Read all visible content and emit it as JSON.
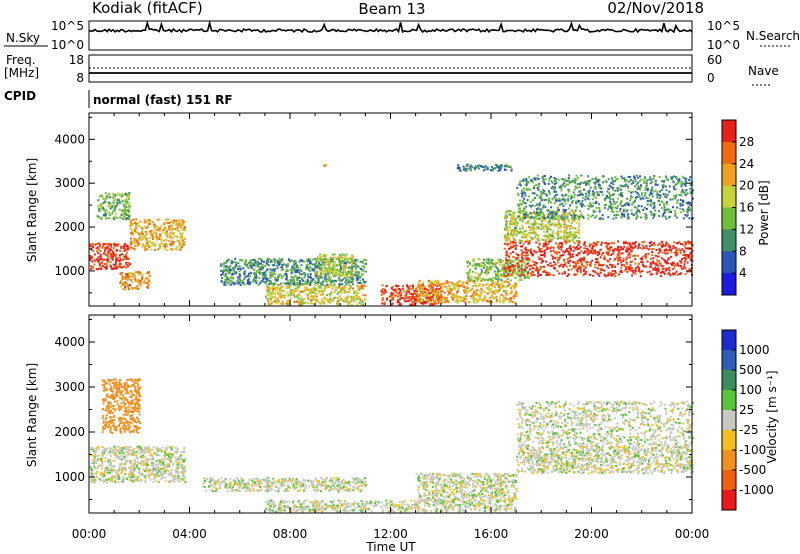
{
  "header": {
    "station": "Kodiak (fitACF)",
    "beam": "Beam 13",
    "date": "02/Nov/2018"
  },
  "nsky_panel": {
    "label": "N.Sky",
    "ytick_top": "10^5",
    "ytick_bottom": "10^0",
    "right_label": "N.Search",
    "right_ytick_top": "10^5",
    "right_ytick_bottom": "10^0"
  },
  "freq_panel": {
    "label_line1": "Freq.",
    "label_line2": "[MHz]",
    "ytick_top": "18",
    "ytick_bottom": "8",
    "right_label": "Nave",
    "right_ytick_top": "60",
    "right_ytick_bottom": "0"
  },
  "cpid": {
    "label": "CPID",
    "value": "normal (fast) 151 RF"
  },
  "chart_data": [
    {
      "type": "heatmap",
      "name": "power",
      "ylabel": "Slant Range [km]",
      "ylim": [
        200,
        4600
      ],
      "yticks": [
        1000,
        2000,
        3000,
        4000
      ],
      "xlim": [
        0,
        24
      ],
      "xticks": [
        0,
        4,
        8,
        12,
        16,
        20,
        24
      ],
      "xtick_labels": [
        "00:00",
        "04:00",
        "08:00",
        "12:00",
        "16:00",
        "20:00",
        "00:00"
      ],
      "colorbar": {
        "label": "Power [dB]",
        "ticks": [
          "4",
          "8",
          "12",
          "16",
          "20",
          "24",
          "28"
        ],
        "range": [
          0,
          30
        ],
        "colors": [
          "#1c1ce0",
          "#2b56b8",
          "#3f8f6a",
          "#6fbf3a",
          "#c8d23a",
          "#f0a020",
          "#f06a10",
          "#e8201a"
        ]
      },
      "echo_regions": [
        {
          "x": [
            0.0,
            1.6
          ],
          "range": [
            1050,
            1650
          ],
          "power": 28
        },
        {
          "x": [
            1.6,
            3.8
          ],
          "range": [
            1500,
            2200
          ],
          "power": 20
        },
        {
          "x": [
            0.3,
            1.6
          ],
          "range": [
            2200,
            2800
          ],
          "power": 12
        },
        {
          "x": [
            1.2,
            2.4
          ],
          "range": [
            600,
            1000
          ],
          "power": 22
        },
        {
          "x": [
            5.2,
            11.0
          ],
          "range": [
            700,
            1300
          ],
          "power": 10
        },
        {
          "x": [
            9.0,
            10.5
          ],
          "range": [
            900,
            1400
          ],
          "power": 16
        },
        {
          "x": [
            7.0,
            11.0
          ],
          "range": [
            250,
            700
          ],
          "power": 18
        },
        {
          "x": [
            11.6,
            14.0
          ],
          "range": [
            250,
            700
          ],
          "power": 28
        },
        {
          "x": [
            13.0,
            17.0
          ],
          "range": [
            300,
            800
          ],
          "power": 20
        },
        {
          "x": [
            15.0,
            17.5
          ],
          "range": [
            800,
            1300
          ],
          "power": 14
        },
        {
          "x": [
            16.5,
            24.0
          ],
          "range": [
            900,
            1700
          ],
          "power": 28
        },
        {
          "x": [
            16.5,
            19.5
          ],
          "range": [
            1700,
            2400
          ],
          "power": 16
        },
        {
          "x": [
            17.0,
            24.0
          ],
          "range": [
            2200,
            3200
          ],
          "power": 10
        },
        {
          "x": [
            9.3,
            9.4
          ],
          "range": [
            3300,
            3450
          ],
          "power": 24
        },
        {
          "x": [
            14.6,
            16.8
          ],
          "range": [
            3300,
            3450
          ],
          "power": 8
        }
      ]
    },
    {
      "type": "heatmap",
      "name": "velocity",
      "ylabel": "Slant Range [km]",
      "xlabel": "Time UT",
      "ylim": [
        200,
        4600
      ],
      "yticks": [
        1000,
        2000,
        3000,
        4000
      ],
      "xlim": [
        0,
        24
      ],
      "xticks": [
        0,
        4,
        8,
        12,
        16,
        20,
        24
      ],
      "xtick_labels": [
        "00:00",
        "04:00",
        "08:00",
        "12:00",
        "16:00",
        "20:00",
        "00:00"
      ],
      "colorbar": {
        "label": "Velocity [m s⁻¹]",
        "ticks": [
          "1000",
          "500",
          "100",
          "25",
          "-25",
          "-100",
          "-500",
          "-1000"
        ],
        "colors": [
          "#1c2bd0",
          "#2b5fb8",
          "#3d8c5e",
          "#58c43a",
          "#c8c8c0",
          "#f0c020",
          "#f09020",
          "#f06010",
          "#e81a1a"
        ]
      },
      "echo_regions": [
        {
          "x": [
            0.0,
            3.8
          ],
          "range": [
            1400,
            1700
          ],
          "velocity": 0
        },
        {
          "x": [
            0.0,
            3.8
          ],
          "range": [
            900,
            1400
          ],
          "velocity": 0
        },
        {
          "x": [
            0.5,
            2.0
          ],
          "range": [
            2000,
            3200
          ],
          "velocity": -100
        },
        {
          "x": [
            4.5,
            11.0
          ],
          "range": [
            700,
            1000
          ],
          "velocity": 0
        },
        {
          "x": [
            7.0,
            17.0
          ],
          "range": [
            250,
            500
          ],
          "velocity": 0
        },
        {
          "x": [
            13.0,
            17.0
          ],
          "range": [
            500,
            1100
          ],
          "velocity": 0
        },
        {
          "x": [
            17.0,
            24.0
          ],
          "range": [
            1100,
            1700
          ],
          "velocity": 0
        },
        {
          "x": [
            17.0,
            24.0
          ],
          "range": [
            1700,
            2700
          ],
          "velocity": 0
        }
      ]
    }
  ],
  "colors": {
    "axis": "#000000",
    "background": "#ffffff",
    "ground_scatter": "#c8c8c0"
  }
}
